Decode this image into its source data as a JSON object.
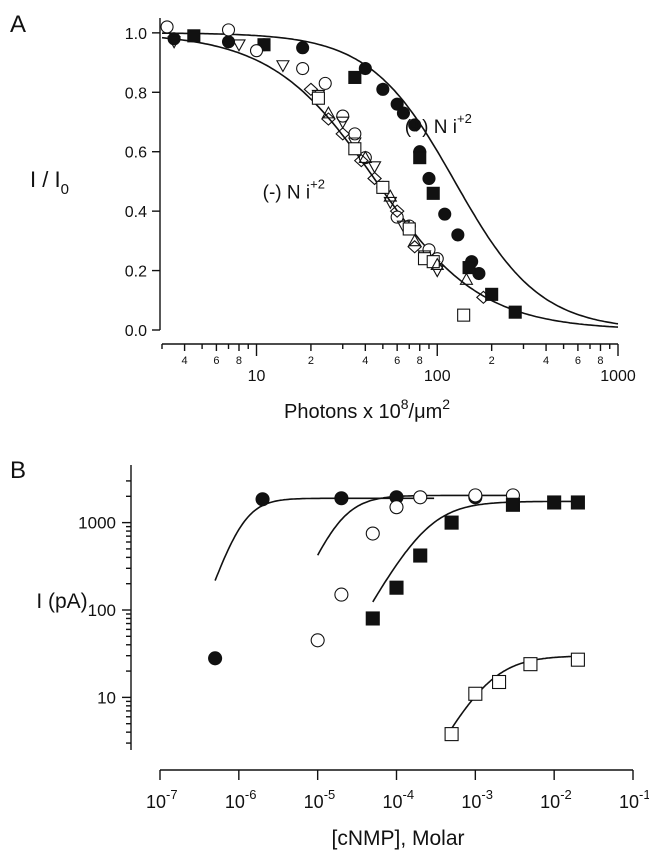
{
  "panels": [
    {
      "letter": "A"
    },
    {
      "letter": "B"
    }
  ],
  "chart_data": [
    {
      "type": "scatter",
      "x_scale": "log",
      "xlim": [
        3,
        1000
      ],
      "ylim": [
        0,
        1.05
      ],
      "ylabel_main": "I / I",
      "ylabel_sub": "0",
      "xlabel_pre": "Photons x 10",
      "xlabel_exp": "8",
      "xlabel_post": "/μm",
      "xlabel_post_exp": "2",
      "x_tick_major": [
        {
          "v": 10,
          "t": "10"
        },
        {
          "v": 100,
          "t": "100"
        },
        {
          "v": 1000,
          "t": "1000"
        }
      ],
      "x_tick_minor": [
        {
          "v": 4,
          "t": "4"
        },
        {
          "v": 6,
          "t": "6"
        },
        {
          "v": 8,
          "t": "8"
        },
        {
          "v": 20,
          "t": "2"
        },
        {
          "v": 40,
          "t": "4"
        },
        {
          "v": 60,
          "t": "6"
        },
        {
          "v": 80,
          "t": "8"
        },
        {
          "v": 200,
          "t": "2"
        },
        {
          "v": 400,
          "t": "4"
        },
        {
          "v": 600,
          "t": "6"
        },
        {
          "v": 800,
          "t": "8"
        }
      ],
      "y_ticks": [
        {
          "v": 0,
          "t": "0.0"
        },
        {
          "v": 0.2,
          "t": "0.2"
        },
        {
          "v": 0.4,
          "t": "0.4"
        },
        {
          "v": 0.6,
          "t": "0.6"
        },
        {
          "v": 0.8,
          "t": "0.8"
        },
        {
          "v": 1.0,
          "t": "1.0"
        }
      ],
      "annotations": [
        {
          "pre": "(+) N i",
          "sup": "+2",
          "x": 110,
          "y": 0.69
        },
        {
          "pre": "(-) N i",
          "sup": "+2",
          "x": 18,
          "y": 0.47
        }
      ],
      "fits": [
        {
          "i50": 125,
          "n": 1.85
        },
        {
          "i50": 46,
          "n": 1.5
        }
      ],
      "series": [
        {
          "marker": "filled-circle",
          "points": [
            [
              3.5,
              0.98
            ],
            [
              7,
              0.97
            ],
            [
              11,
              0.96
            ],
            [
              18,
              0.95
            ],
            [
              40,
              0.88
            ],
            [
              50,
              0.81
            ],
            [
              60,
              0.76
            ],
            [
              65,
              0.73
            ],
            [
              75,
              0.69
            ],
            [
              80,
              0.6
            ],
            [
              90,
              0.51
            ],
            [
              110,
              0.39
            ],
            [
              130,
              0.32
            ],
            [
              155,
              0.23
            ],
            [
              170,
              0.19
            ]
          ]
        },
        {
          "marker": "filled-square",
          "points": [
            [
              4.5,
              0.99
            ],
            [
              11,
              0.96
            ],
            [
              35,
              0.85
            ],
            [
              80,
              0.58
            ],
            [
              95,
              0.46
            ],
            [
              150,
              0.21
            ],
            [
              200,
              0.12
            ],
            [
              270,
              0.06
            ]
          ]
        },
        {
          "marker": "open-circle",
          "points": [
            [
              3.2,
              1.02
            ],
            [
              7,
              1.01
            ],
            [
              10,
              0.94
            ],
            [
              18,
              0.88
            ],
            [
              24,
              0.83
            ],
            [
              30,
              0.72
            ],
            [
              35,
              0.66
            ],
            [
              40,
              0.58
            ],
            [
              50,
              0.48
            ],
            [
              60,
              0.38
            ],
            [
              70,
              0.35
            ],
            [
              90,
              0.27
            ],
            [
              100,
              0.24
            ]
          ]
        },
        {
          "marker": "open-triangle-down",
          "points": [
            [
              3.5,
              0.97
            ],
            [
              8,
              0.96
            ],
            [
              14,
              0.89
            ],
            [
              22,
              0.79
            ],
            [
              30,
              0.7
            ],
            [
              35,
              0.63
            ],
            [
              45,
              0.55
            ],
            [
              55,
              0.43
            ],
            [
              65,
              0.35
            ],
            [
              85,
              0.25
            ],
            [
              100,
              0.2
            ]
          ]
        },
        {
          "marker": "open-diamond",
          "points": [
            [
              20,
              0.81
            ],
            [
              25,
              0.71
            ],
            [
              30,
              0.66
            ],
            [
              38,
              0.57
            ],
            [
              45,
              0.51
            ],
            [
              60,
              0.4
            ],
            [
              75,
              0.28
            ],
            [
              95,
              0.23
            ],
            [
              180,
              0.11
            ]
          ]
        },
        {
          "marker": "open-square",
          "points": [
            [
              22,
              0.78
            ],
            [
              35,
              0.61
            ],
            [
              50,
              0.48
            ],
            [
              70,
              0.34
            ],
            [
              85,
              0.24
            ],
            [
              95,
              0.23
            ],
            [
              140,
              0.05
            ]
          ]
        },
        {
          "marker": "open-triangle-up",
          "points": [
            [
              25,
              0.73
            ],
            [
              40,
              0.58
            ],
            [
              55,
              0.45
            ],
            [
              75,
              0.3
            ],
            [
              100,
              0.22
            ],
            [
              145,
              0.17
            ]
          ]
        }
      ]
    },
    {
      "type": "scatter",
      "x_scale": "log",
      "y_scale": "log",
      "xlim": [
        1e-07,
        0.1
      ],
      "ylim": [
        2.5,
        4000
      ],
      "ylabel": "I (pA)",
      "xlabel": "[cNMP], Molar",
      "x_ticks": [
        {
          "e": -7,
          "t": "-7"
        },
        {
          "e": -6,
          "t": "-6"
        },
        {
          "e": -5,
          "t": "-5"
        },
        {
          "e": -4,
          "t": "-4"
        },
        {
          "e": -3,
          "t": "-3"
        },
        {
          "e": -2,
          "t": "-2"
        },
        {
          "e": -1,
          "t": "-1"
        }
      ],
      "x_tick_base": "10",
      "y_ticks": [
        {
          "v": 10,
          "t": "10"
        },
        {
          "v": 100,
          "t": "100"
        },
        {
          "v": 1000,
          "t": "1000"
        }
      ],
      "fits": [
        {
          "imax": 1900,
          "k": 1.1e-06,
          "n": 2.6,
          "xmin": 5e-07,
          "xmax": 0.0003
        },
        {
          "imax": 2050,
          "k": 1.9e-05,
          "n": 2.1,
          "xmin": 1e-05,
          "xmax": 0.003
        },
        {
          "imax": 1750,
          "k": 0.00025,
          "n": 1.6,
          "xmin": 5e-05,
          "xmax": 0.02
        },
        {
          "imax": 30,
          "k": 0.0015,
          "n": 1.6,
          "xmin": 0.0005,
          "xmax": 0.02
        }
      ],
      "series": [
        {
          "marker": "filled-circle",
          "points": [
            [
              5e-07,
              28
            ],
            [
              2e-06,
              1850
            ],
            [
              2e-05,
              1900
            ],
            [
              0.0001,
              1950
            ],
            [
              0.001,
              1950
            ]
          ]
        },
        {
          "marker": "open-circle",
          "points": [
            [
              1e-05,
              45
            ],
            [
              2e-05,
              150
            ],
            [
              5e-05,
              750
            ],
            [
              0.0001,
              1500
            ],
            [
              0.0002,
              1950
            ],
            [
              0.001,
              2050
            ],
            [
              0.003,
              2050
            ]
          ]
        },
        {
          "marker": "filled-square",
          "points": [
            [
              5e-05,
              80
            ],
            [
              0.0001,
              180
            ],
            [
              0.0002,
              420
            ],
            [
              0.0005,
              1000
            ],
            [
              0.003,
              1600
            ],
            [
              0.01,
              1700
            ],
            [
              0.02,
              1700
            ]
          ]
        },
        {
          "marker": "open-square",
          "points": [
            [
              0.0005,
              3.8
            ],
            [
              0.001,
              11
            ],
            [
              0.002,
              15
            ],
            [
              0.005,
              24
            ],
            [
              0.02,
              27
            ]
          ]
        }
      ]
    }
  ]
}
